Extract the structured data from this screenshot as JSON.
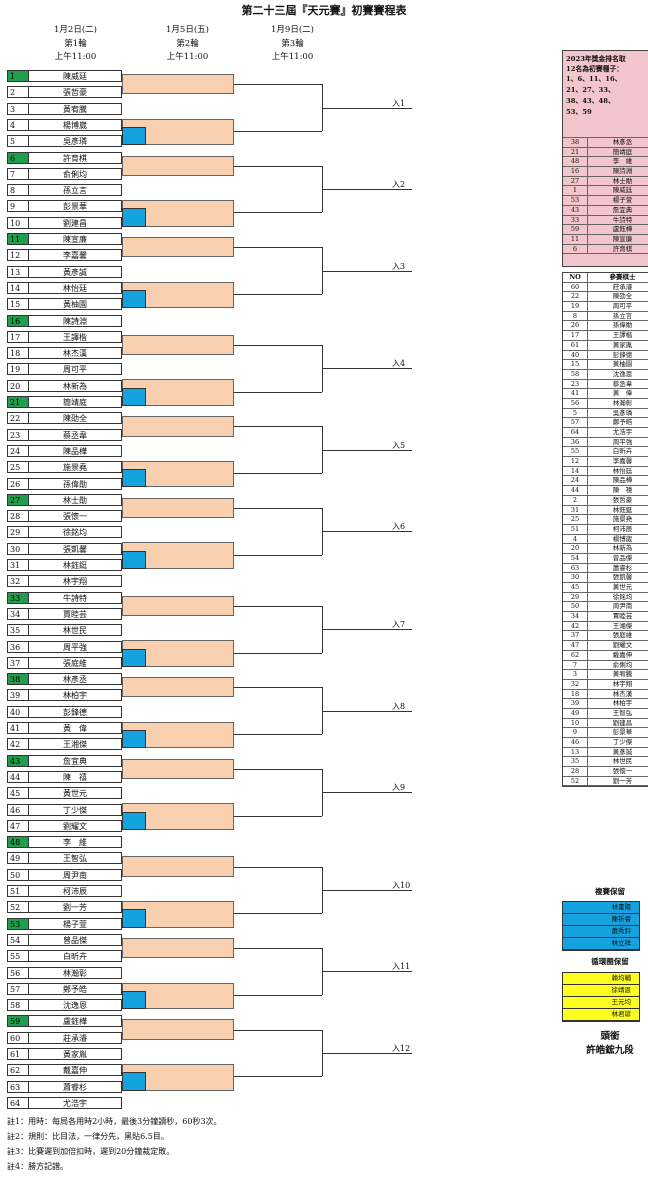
{
  "title": "第二十三屆『天元賽』初賽賽程表",
  "rounds": [
    {
      "date": "1月2日(二)",
      "label": "第1輪",
      "time": "上午11:00"
    },
    {
      "date": "1月5日(五)",
      "label": "第2輪",
      "time": "上午11:00"
    },
    {
      "date": "1月9日(二)",
      "label": "第3輪",
      "time": "上午11:00"
    }
  ],
  "entrants": [
    {
      "no": "1",
      "name": "陳威廷",
      "seed": true
    },
    {
      "no": "2",
      "name": "張哲豪",
      "seed": false
    },
    {
      "no": "3",
      "name": "黃宥騰",
      "seed": false
    },
    {
      "no": "4",
      "name": "楊博崴",
      "seed": false
    },
    {
      "no": "5",
      "name": "吳彥璘",
      "seed": false
    },
    {
      "no": "6",
      "name": "許育棋",
      "seed": true
    },
    {
      "no": "7",
      "name": "俞俐均",
      "seed": false
    },
    {
      "no": "8",
      "name": "孫立言",
      "seed": false
    },
    {
      "no": "9",
      "name": "彭景華",
      "seed": false
    },
    {
      "no": "10",
      "name": "劉建昌",
      "seed": false
    },
    {
      "no": "11",
      "name": "陳宣廉",
      "seed": true
    },
    {
      "no": "12",
      "name": "李嘉馨",
      "seed": false
    },
    {
      "no": "13",
      "name": "黃彥誠",
      "seed": false
    },
    {
      "no": "14",
      "name": "林怡廷",
      "seed": false
    },
    {
      "no": "15",
      "name": "黃柚園",
      "seed": false
    },
    {
      "no": "16",
      "name": "陳詩淵",
      "seed": true
    },
    {
      "no": "17",
      "name": "王譯楷",
      "seed": false
    },
    {
      "no": "18",
      "name": "林杰漢",
      "seed": false
    },
    {
      "no": "19",
      "name": "周可平",
      "seed": false
    },
    {
      "no": "20",
      "name": "林新為",
      "seed": false
    },
    {
      "no": "21",
      "name": "簡靖庭",
      "seed": true
    },
    {
      "no": "22",
      "name": "陳劭全",
      "seed": false
    },
    {
      "no": "23",
      "name": "蔡丞韋",
      "seed": false
    },
    {
      "no": "24",
      "name": "陳品樺",
      "seed": false
    },
    {
      "no": "25",
      "name": "施景堯",
      "seed": false
    },
    {
      "no": "26",
      "name": "孫偉勛",
      "seed": false
    },
    {
      "no": "27",
      "name": "林士勛",
      "seed": true
    },
    {
      "no": "28",
      "name": "張懷一",
      "seed": false
    },
    {
      "no": "29",
      "name": "徐銘均",
      "seed": false
    },
    {
      "no": "30",
      "name": "張凱馨",
      "seed": false
    },
    {
      "no": "31",
      "name": "林鈺鋌",
      "seed": false
    },
    {
      "no": "32",
      "name": "林宇翔",
      "seed": false
    },
    {
      "no": "33",
      "name": "牛詩特",
      "seed": true
    },
    {
      "no": "34",
      "name": "賈睦芸",
      "seed": false
    },
    {
      "no": "35",
      "name": "林世民",
      "seed": false
    },
    {
      "no": "36",
      "name": "周平強",
      "seed": false
    },
    {
      "no": "37",
      "name": "張庭維",
      "seed": false
    },
    {
      "no": "38",
      "name": "林彥丞",
      "seed": true
    },
    {
      "no": "39",
      "name": "林柏宇",
      "seed": false
    },
    {
      "no": "40",
      "name": "彭鋒德",
      "seed": false
    },
    {
      "no": "41",
      "name": "黃　偉",
      "seed": false
    },
    {
      "no": "42",
      "name": "王湘傑",
      "seed": false
    },
    {
      "no": "43",
      "name": "詹宜典",
      "seed": true
    },
    {
      "no": "44",
      "name": "陳　禧",
      "seed": false
    },
    {
      "no": "45",
      "name": "黃世元",
      "seed": false
    },
    {
      "no": "46",
      "name": "丁少傑",
      "seed": false
    },
    {
      "no": "47",
      "name": "劉耀文",
      "seed": false
    },
    {
      "no": "48",
      "name": "李　維",
      "seed": true
    },
    {
      "no": "49",
      "name": "王智弘",
      "seed": false
    },
    {
      "no": "50",
      "name": "周尹南",
      "seed": false
    },
    {
      "no": "51",
      "name": "柯沛辰",
      "seed": false
    },
    {
      "no": "52",
      "name": "劉一芳",
      "seed": false
    },
    {
      "no": "53",
      "name": "楊子萱",
      "seed": true
    },
    {
      "no": "54",
      "name": "曾品傑",
      "seed": false
    },
    {
      "no": "55",
      "name": "白昕卉",
      "seed": false
    },
    {
      "no": "56",
      "name": "林瀚彰",
      "seed": false
    },
    {
      "no": "57",
      "name": "鄭予皓",
      "seed": false
    },
    {
      "no": "58",
      "name": "沈逸恩",
      "seed": false
    },
    {
      "no": "59",
      "name": "盧鈺樺",
      "seed": true
    },
    {
      "no": "60",
      "name": "莊承濬",
      "seed": false
    },
    {
      "no": "61",
      "name": "黃家胤",
      "seed": false
    },
    {
      "no": "62",
      "name": "戴嘉伸",
      "seed": false
    },
    {
      "no": "63",
      "name": "蕭睿杉",
      "seed": false
    },
    {
      "no": "64",
      "name": "尤浩宇",
      "seed": false
    }
  ],
  "advance_labels": [
    "入1",
    "入2",
    "入3",
    "入4",
    "入5",
    "入6",
    "入7",
    "入8",
    "入9",
    "入10",
    "入11",
    "入12"
  ],
  "seed_note": {
    "heading": "2023年獎金排名取12名為初賽種子：",
    "numbers": "1、6、11、16、21、27、33、38、43、48、53、59",
    "list": [
      [
        "38",
        "林彥丞"
      ],
      [
        "21",
        "簡靖庭"
      ],
      [
        "48",
        "李　維"
      ],
      [
        "16",
        "陳詩淵"
      ],
      [
        "27",
        "林士勛"
      ],
      [
        "1",
        "陳威廷"
      ],
      [
        "53",
        "楊子萱"
      ],
      [
        "43",
        "詹宜典"
      ],
      [
        "33",
        "牛詩特"
      ],
      [
        "59",
        "盧鈺樺"
      ],
      [
        "11",
        "陳宣廉"
      ],
      [
        "6",
        "許育棋"
      ]
    ]
  },
  "participants_table": {
    "col_no": "NO",
    "col_name": "參賽棋士",
    "rows": [
      [
        "60",
        "莊承濬"
      ],
      [
        "22",
        "陳劭全"
      ],
      [
        "19",
        "周可平"
      ],
      [
        "8",
        "孫立言"
      ],
      [
        "26",
        "孫偉勛"
      ],
      [
        "17",
        "王譯楷"
      ],
      [
        "61",
        "黃家胤"
      ],
      [
        "40",
        "彭鋒德"
      ],
      [
        "15",
        "黃柚園"
      ],
      [
        "58",
        "沈逸恩"
      ],
      [
        "23",
        "蔡丞韋"
      ],
      [
        "41",
        "黃　偉"
      ],
      [
        "56",
        "林瀚彰"
      ],
      [
        "5",
        "吳彥璘"
      ],
      [
        "57",
        "鄭予皓"
      ],
      [
        "64",
        "尤浩宇"
      ],
      [
        "36",
        "周平強"
      ],
      [
        "55",
        "白昕卉"
      ],
      [
        "12",
        "李嘉馨"
      ],
      [
        "14",
        "林怡廷"
      ],
      [
        "24",
        "陳品樺"
      ],
      [
        "44",
        "陳　禧"
      ],
      [
        "2",
        "張哲豪"
      ],
      [
        "31",
        "林鈺鋌"
      ],
      [
        "25",
        "施景堯"
      ],
      [
        "51",
        "柯沛辰"
      ],
      [
        "4",
        "楊博崴"
      ],
      [
        "20",
        "林新為"
      ],
      [
        "54",
        "曾品傑"
      ],
      [
        "63",
        "蕭睿杉"
      ],
      [
        "30",
        "張凱馨"
      ],
      [
        "45",
        "黃世元"
      ],
      [
        "29",
        "徐銘均"
      ],
      [
        "50",
        "周尹南"
      ],
      [
        "34",
        "賈睦芸"
      ],
      [
        "42",
        "王湘傑"
      ],
      [
        "37",
        "張庭維"
      ],
      [
        "47",
        "劉耀文"
      ],
      [
        "62",
        "戴嘉伸"
      ],
      [
        "7",
        "俞俐均"
      ],
      [
        "3",
        "黃宥騰"
      ],
      [
        "32",
        "林宇翔"
      ],
      [
        "18",
        "林杰漢"
      ],
      [
        "39",
        "林柏宇"
      ],
      [
        "49",
        "王智弘"
      ],
      [
        "10",
        "劉建昌"
      ],
      [
        "9",
        "彭景華"
      ],
      [
        "46",
        "丁少傑"
      ],
      [
        "13",
        "黃彥誠"
      ],
      [
        "35",
        "林世民"
      ],
      [
        "28",
        "張懷一"
      ],
      [
        "52",
        "劉一芳"
      ]
    ]
  },
  "reserve_semifinal": {
    "heading": "複賽保留",
    "names": [
      "林書陽",
      "陳祈睿",
      "蕭秀鈐",
      "林立祥"
    ],
    "color": "#15a3e0"
  },
  "reserve_league": {
    "heading": "循環圈保留",
    "names": [
      "賴均輔",
      "徐靖恩",
      "王元均",
      "林君諺"
    ],
    "color": "#ffff1f"
  },
  "title_holder": {
    "label": "頭銜",
    "name": "許皓鋐九段"
  },
  "notes": [
    "註1：用時：每局各用時2小時，最後3分鐘讀秒，60秒3次。",
    "註2：規則：比目法，一律分先，黑貼6.5目。",
    "註3：比賽遲到加倍扣時，遲到20分鐘裁定敗。",
    "註4：勝方記譜。"
  ]
}
